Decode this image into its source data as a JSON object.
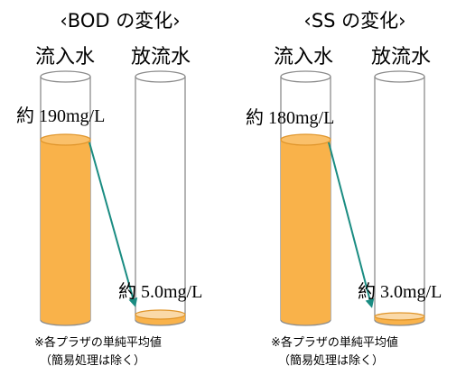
{
  "panels": [
    {
      "title": "‹BOD の変化›",
      "inflow_label": "流入水",
      "outflow_label": "放流水",
      "inflow_value": "約 190mg/L",
      "outflow_value": "約 5.0mg/L",
      "inflow_amount": 190,
      "outflow_amount": 5.0,
      "note_line1": "※各プラザの単純平均値",
      "note_line2": "（簡易処理は除く）"
    },
    {
      "title": "‹SS の変化›",
      "inflow_label": "流入水",
      "outflow_label": "放流水",
      "inflow_value": "約 180mg/L",
      "outflow_value": "約 3.0mg/L",
      "inflow_amount": 180,
      "outflow_amount": 3.0,
      "note_line1": "※各プラザの単純平均値",
      "note_line2": "（簡易処理は除く）"
    }
  ],
  "colors": {
    "liquid_fill": "#F9B24A",
    "liquid_stroke": "#E0962C",
    "liquid_light": "#FAD9A8",
    "tube_stroke": "#8C8C8C",
    "arrow": "#1A8C82"
  }
}
